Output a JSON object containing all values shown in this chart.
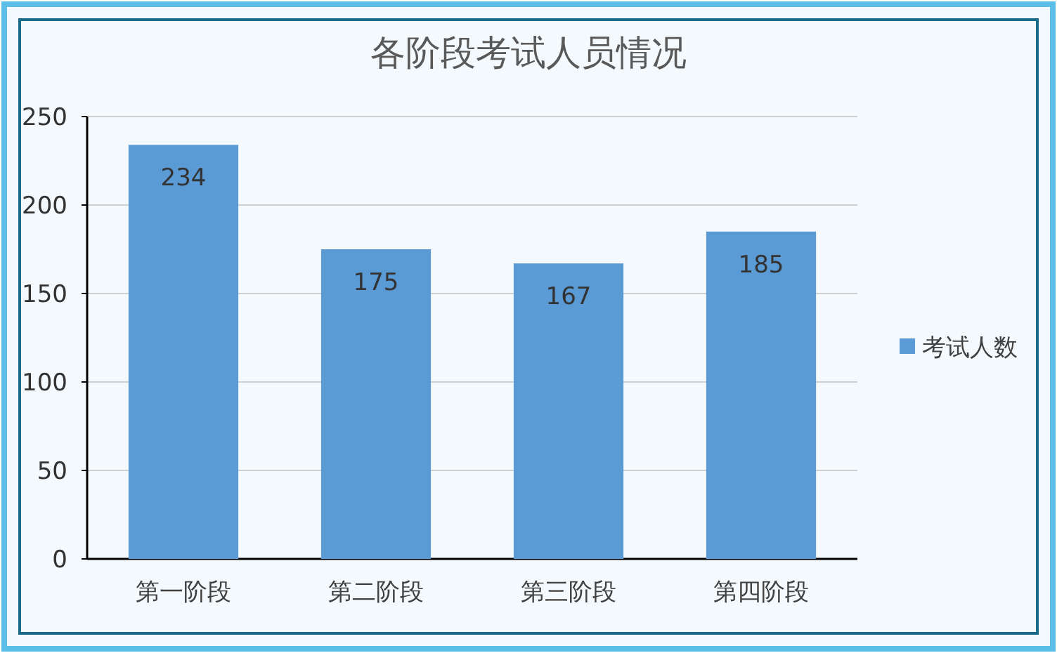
{
  "chart_data": {
    "type": "bar",
    "title": "各阶段考试人员情况",
    "categories": [
      "第一阶段",
      "第二阶段",
      "第三阶段",
      "第四阶段"
    ],
    "series": [
      {
        "name": "考试人数",
        "color": "#5b9bd5",
        "values": [
          234,
          175,
          167,
          185
        ]
      }
    ],
    "ylim": [
      0,
      250
    ],
    "yticks": [
      0,
      50,
      100,
      150,
      200,
      250
    ],
    "grid": "y",
    "legend": "right",
    "data_labels": true
  }
}
